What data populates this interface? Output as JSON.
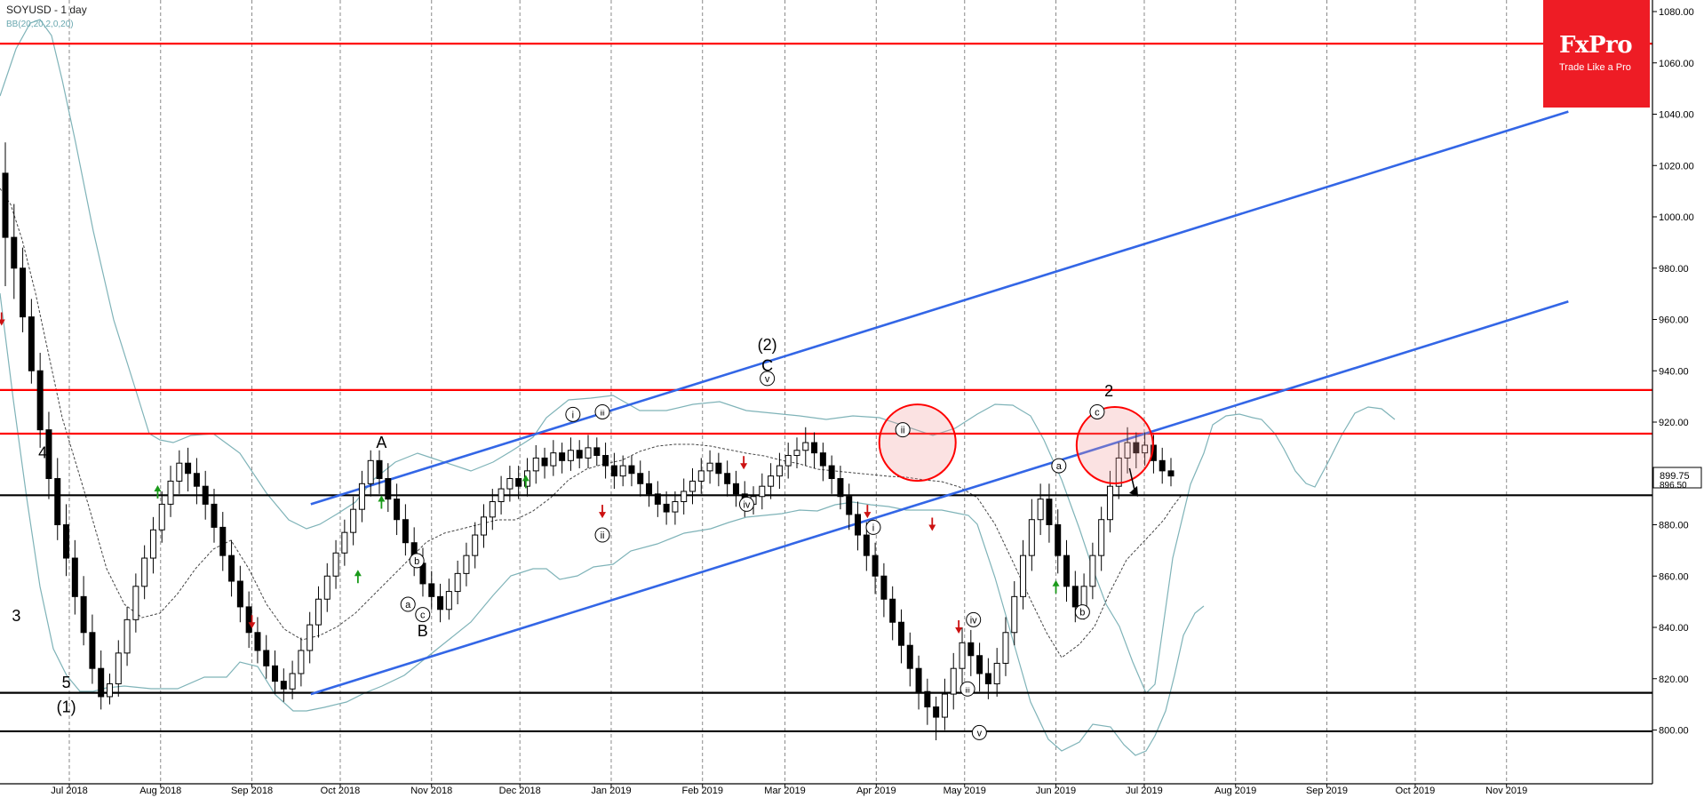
{
  "header": {
    "title": "SOYUSD - 1 day",
    "indicator": "BB(20,20,2,0,20)"
  },
  "logo": {
    "brand": "FxPro",
    "tagline": "Trade Like a Pro"
  },
  "colors": {
    "resistance": "#ff0000",
    "support": "#000000",
    "channel": "#3366e6",
    "bollinger": "#7fb3b8",
    "arrow_up": "#1a9a1a",
    "arrow_down": "#cc1111",
    "highlight_fill": "rgba(240,150,150,0.28)"
  },
  "chart_data": {
    "type": "candlestick",
    "symbol": "SOYUSD",
    "timeframe": "1 day",
    "ylim": [
      790,
      1082
    ],
    "y_ticks": [
      800,
      820,
      840,
      860,
      880,
      900,
      920,
      940,
      960,
      980,
      1000,
      1020,
      1040,
      1060,
      1080
    ],
    "y_tick_labels": [
      "800.00",
      "820.00",
      "840.00",
      "860.00",
      "880.00",
      "900.00",
      "920.00",
      "940.00",
      "960.00",
      "980.00",
      "1000.00",
      "1020.00",
      "1040.00",
      "1060.00",
      "1080.00"
    ],
    "x_labels": [
      "Jul 2018",
      "Aug 2018",
      "Sep 2018",
      "Oct 2018",
      "Nov 2018",
      "Dec 2018",
      "Jan 2019",
      "Feb 2019",
      "Mar 2019",
      "Apr 2019",
      "May 2019",
      "Jun 2019",
      "Jul 2019",
      "Aug 2019",
      "Sep 2019",
      "Oct 2019",
      "Nov 2019"
    ],
    "grid": "vertical-dashed",
    "price_labels": [
      "899.75",
      "896.50"
    ],
    "horizontal_levels": [
      {
        "role": "resistance",
        "price": 1067.5
      },
      {
        "role": "resistance",
        "price": 932.5
      },
      {
        "role": "resistance",
        "price": 915.5
      },
      {
        "role": "support",
        "price": 891.5
      },
      {
        "role": "support",
        "price": 814.5
      },
      {
        "role": "support",
        "price": 799.5
      }
    ],
    "channel_lines": [
      {
        "from": [
          "2018-09-21",
          888
        ],
        "to": [
          "2019-11-22",
          1041
        ]
      },
      {
        "from": [
          "2018-09-21",
          814
        ],
        "to": [
          "2019-11-22",
          967
        ]
      }
    ],
    "highlight_circles": [
      {
        "date": "2019-04-15",
        "price": 912
      },
      {
        "date": "2019-06-21",
        "price": 911
      }
    ],
    "forecast_arrow": {
      "from": [
        "2019-06-26",
        902
      ],
      "to": [
        "2019-06-28",
        892
      ]
    },
    "candles": [
      [
        1017,
        992,
        1029,
        973
      ],
      [
        992,
        980,
        1005,
        968
      ],
      [
        980,
        961,
        988,
        955
      ],
      [
        961,
        940,
        968,
        935
      ],
      [
        940,
        917,
        947,
        910
      ],
      [
        917,
        898,
        924,
        890
      ],
      [
        898,
        880,
        906,
        874
      ],
      [
        880,
        867,
        888,
        860
      ],
      [
        867,
        852,
        874,
        845
      ],
      [
        852,
        838,
        860,
        833
      ],
      [
        838,
        824,
        845,
        818
      ],
      [
        824,
        813,
        831,
        808
      ],
      [
        813,
        818,
        822,
        810
      ],
      [
        818,
        830,
        835,
        813
      ],
      [
        830,
        843,
        848,
        825
      ],
      [
        843,
        856,
        861,
        838
      ],
      [
        856,
        867,
        872,
        851
      ],
      [
        867,
        878,
        883,
        861
      ],
      [
        878,
        888,
        893,
        873
      ],
      [
        888,
        897,
        903,
        883
      ],
      [
        897,
        904,
        909,
        892
      ],
      [
        904,
        900,
        910,
        893
      ],
      [
        900,
        895,
        906,
        888
      ],
      [
        895,
        888,
        901,
        882
      ],
      [
        888,
        879,
        894,
        873
      ],
      [
        879,
        868,
        885,
        862
      ],
      [
        868,
        858,
        874,
        852
      ],
      [
        858,
        848,
        864,
        842
      ],
      [
        848,
        838,
        854,
        832
      ],
      [
        838,
        831,
        844,
        826
      ],
      [
        831,
        825,
        837,
        820
      ],
      [
        825,
        819,
        831,
        814
      ],
      [
        819,
        816,
        824,
        811
      ],
      [
        816,
        822,
        827,
        812
      ],
      [
        822,
        831,
        836,
        817
      ],
      [
        831,
        841,
        846,
        826
      ],
      [
        841,
        851,
        856,
        836
      ],
      [
        851,
        860,
        865,
        846
      ],
      [
        860,
        869,
        874,
        855
      ],
      [
        869,
        877,
        882,
        864
      ],
      [
        877,
        886,
        891,
        872
      ],
      [
        886,
        896,
        901,
        881
      ],
      [
        896,
        905,
        909,
        891
      ],
      [
        905,
        898,
        909,
        892
      ],
      [
        898,
        890,
        904,
        885
      ],
      [
        890,
        882,
        896,
        876
      ],
      [
        882,
        873,
        888,
        868
      ],
      [
        873,
        865,
        879,
        860
      ],
      [
        865,
        857,
        871,
        852
      ],
      [
        857,
        852,
        862,
        847
      ],
      [
        852,
        847,
        857,
        842
      ],
      [
        847,
        854,
        859,
        843
      ],
      [
        854,
        861,
        866,
        849
      ],
      [
        861,
        868,
        873,
        856
      ],
      [
        868,
        876,
        881,
        863
      ],
      [
        876,
        883,
        888,
        871
      ],
      [
        883,
        889,
        894,
        878
      ],
      [
        889,
        894,
        899,
        884
      ],
      [
        894,
        898,
        903,
        889
      ],
      [
        898,
        895,
        903,
        890
      ],
      [
        895,
        901,
        906,
        891
      ],
      [
        901,
        906,
        911,
        896
      ],
      [
        906,
        903,
        910,
        898
      ],
      [
        903,
        908,
        913,
        899
      ],
      [
        908,
        905,
        912,
        900
      ],
      [
        905,
        909,
        914,
        901
      ],
      [
        909,
        906,
        913,
        902
      ],
      [
        906,
        910,
        915,
        902
      ],
      [
        910,
        907,
        914,
        903
      ],
      [
        907,
        903,
        912,
        898
      ],
      [
        903,
        899,
        908,
        894
      ],
      [
        899,
        903,
        907,
        895
      ],
      [
        903,
        900,
        907,
        895
      ],
      [
        900,
        896,
        905,
        891
      ],
      [
        896,
        892,
        901,
        887
      ],
      [
        892,
        888,
        897,
        883
      ],
      [
        888,
        885,
        893,
        880
      ],
      [
        885,
        889,
        893,
        880
      ],
      [
        889,
        893,
        898,
        884
      ],
      [
        893,
        897,
        902,
        888
      ],
      [
        897,
        901,
        906,
        892
      ],
      [
        901,
        904,
        909,
        896
      ],
      [
        904,
        900,
        908,
        895
      ],
      [
        900,
        896,
        905,
        891
      ],
      [
        896,
        892,
        901,
        887
      ],
      [
        892,
        888,
        897,
        883
      ],
      [
        888,
        891,
        895,
        884
      ],
      [
        891,
        895,
        900,
        886
      ],
      [
        895,
        899,
        904,
        890
      ],
      [
        899,
        903,
        908,
        894
      ],
      [
        903,
        907,
        912,
        898
      ],
      [
        907,
        909,
        914,
        902
      ],
      [
        909,
        912,
        918,
        903
      ],
      [
        912,
        908,
        916,
        902
      ],
      [
        908,
        903,
        912,
        897
      ],
      [
        903,
        898,
        907,
        892
      ],
      [
        898,
        891,
        903,
        886
      ],
      [
        891,
        884,
        896,
        878
      ],
      [
        884,
        876,
        889,
        870
      ],
      [
        876,
        868,
        881,
        862
      ],
      [
        868,
        860,
        873,
        853
      ],
      [
        860,
        851,
        865,
        844
      ],
      [
        851,
        842,
        856,
        835
      ],
      [
        842,
        833,
        847,
        826
      ],
      [
        833,
        824,
        838,
        817
      ],
      [
        824,
        815,
        829,
        808
      ],
      [
        815,
        809,
        820,
        802
      ],
      [
        809,
        805,
        813,
        796
      ],
      [
        805,
        814,
        820,
        800
      ],
      [
        814,
        824,
        830,
        808
      ],
      [
        824,
        834,
        840,
        818
      ],
      [
        834,
        829,
        839,
        821
      ],
      [
        829,
        822,
        834,
        815
      ],
      [
        822,
        818,
        828,
        812
      ],
      [
        818,
        826,
        832,
        813
      ],
      [
        826,
        838,
        844,
        821
      ],
      [
        838,
        852,
        858,
        833
      ],
      [
        852,
        868,
        874,
        847
      ],
      [
        868,
        882,
        890,
        862
      ],
      [
        882,
        890,
        896,
        876
      ],
      [
        890,
        880,
        896,
        873
      ],
      [
        880,
        868,
        886,
        861
      ],
      [
        868,
        856,
        874,
        850
      ],
      [
        856,
        848,
        862,
        842
      ],
      [
        848,
        856,
        861,
        843
      ],
      [
        856,
        868,
        873,
        851
      ],
      [
        868,
        882,
        887,
        862
      ],
      [
        882,
        895,
        901,
        877
      ],
      [
        895,
        906,
        912,
        890
      ],
      [
        906,
        912,
        918,
        900
      ],
      [
        912,
        908,
        916,
        902
      ],
      [
        908,
        911,
        916,
        903
      ],
      [
        911,
        905,
        915,
        900
      ],
      [
        905,
        901,
        910,
        896
      ],
      [
        901,
        899,
        906,
        895
      ]
    ],
    "wave_labels": [
      {
        "text": "3",
        "date": "2018-06-13",
        "price": 842.5
      },
      {
        "text": "4",
        "date": "2018-06-22",
        "price": 906
      },
      {
        "text": "5",
        "date": "2018-06-30",
        "price": 816.5
      },
      {
        "text": "(1)",
        "date": "2018-06-30",
        "price": 807
      },
      {
        "text": "A",
        "date": "2018-10-15",
        "price": 910
      },
      {
        "text": "B",
        "date": "2018-10-29",
        "price": 836.5
      },
      {
        "text": "(2)",
        "date": "2019-02-23",
        "price": 948
      },
      {
        "text": "C",
        "date": "2019-02-23",
        "price": 940
      },
      {
        "text": "2",
        "date": "2019-06-19",
        "price": 930
      }
    ],
    "circled_labels": [
      {
        "text": "a",
        "date": "2018-10-24",
        "price": 849
      },
      {
        "text": "b",
        "date": "2018-10-27",
        "price": 866
      },
      {
        "text": "c",
        "date": "2018-10-29",
        "price": 845
      },
      {
        "text": "i",
        "date": "2018-12-19",
        "price": 923
      },
      {
        "text": "iii",
        "date": "2018-12-29",
        "price": 924
      },
      {
        "text": "ii",
        "date": "2018-12-29",
        "price": 876
      },
      {
        "text": "v",
        "date": "2019-02-23",
        "price": 937
      },
      {
        "text": "iv",
        "date": "2019-02-16",
        "price": 888
      },
      {
        "text": "ii",
        "date": "2019-04-10",
        "price": 917
      },
      {
        "text": "i",
        "date": "2019-03-31",
        "price": 879
      },
      {
        "text": "iv",
        "date": "2019-05-04",
        "price": 843
      },
      {
        "text": "iii",
        "date": "2019-05-02",
        "price": 816
      },
      {
        "text": "v",
        "date": "2019-05-06",
        "price": 799
      },
      {
        "text": "a",
        "date": "2019-06-02",
        "price": 903
      },
      {
        "text": "b",
        "date": "2019-06-10",
        "price": 846
      },
      {
        "text": "c",
        "date": "2019-06-15",
        "price": 924
      }
    ],
    "signal_arrows": [
      {
        "dir": "down",
        "date": "2018-06-08",
        "price": 960
      },
      {
        "dir": "up",
        "date": "2018-07-31",
        "price": 893
      },
      {
        "dir": "down",
        "date": "2018-09-01",
        "price": 842
      },
      {
        "dir": "up",
        "date": "2018-10-07",
        "price": 860
      },
      {
        "dir": "up",
        "date": "2018-10-15",
        "price": 889
      },
      {
        "dir": "up",
        "date": "2018-12-03",
        "price": 897
      },
      {
        "dir": "down",
        "date": "2018-12-29",
        "price": 885
      },
      {
        "dir": "down",
        "date": "2019-02-15",
        "price": 904
      },
      {
        "dir": "down",
        "date": "2019-03-29",
        "price": 885
      },
      {
        "dir": "down",
        "date": "2019-04-20",
        "price": 880
      },
      {
        "dir": "down",
        "date": "2019-04-29",
        "price": 840
      },
      {
        "dir": "up",
        "date": "2019-06-01",
        "price": 856
      }
    ]
  }
}
